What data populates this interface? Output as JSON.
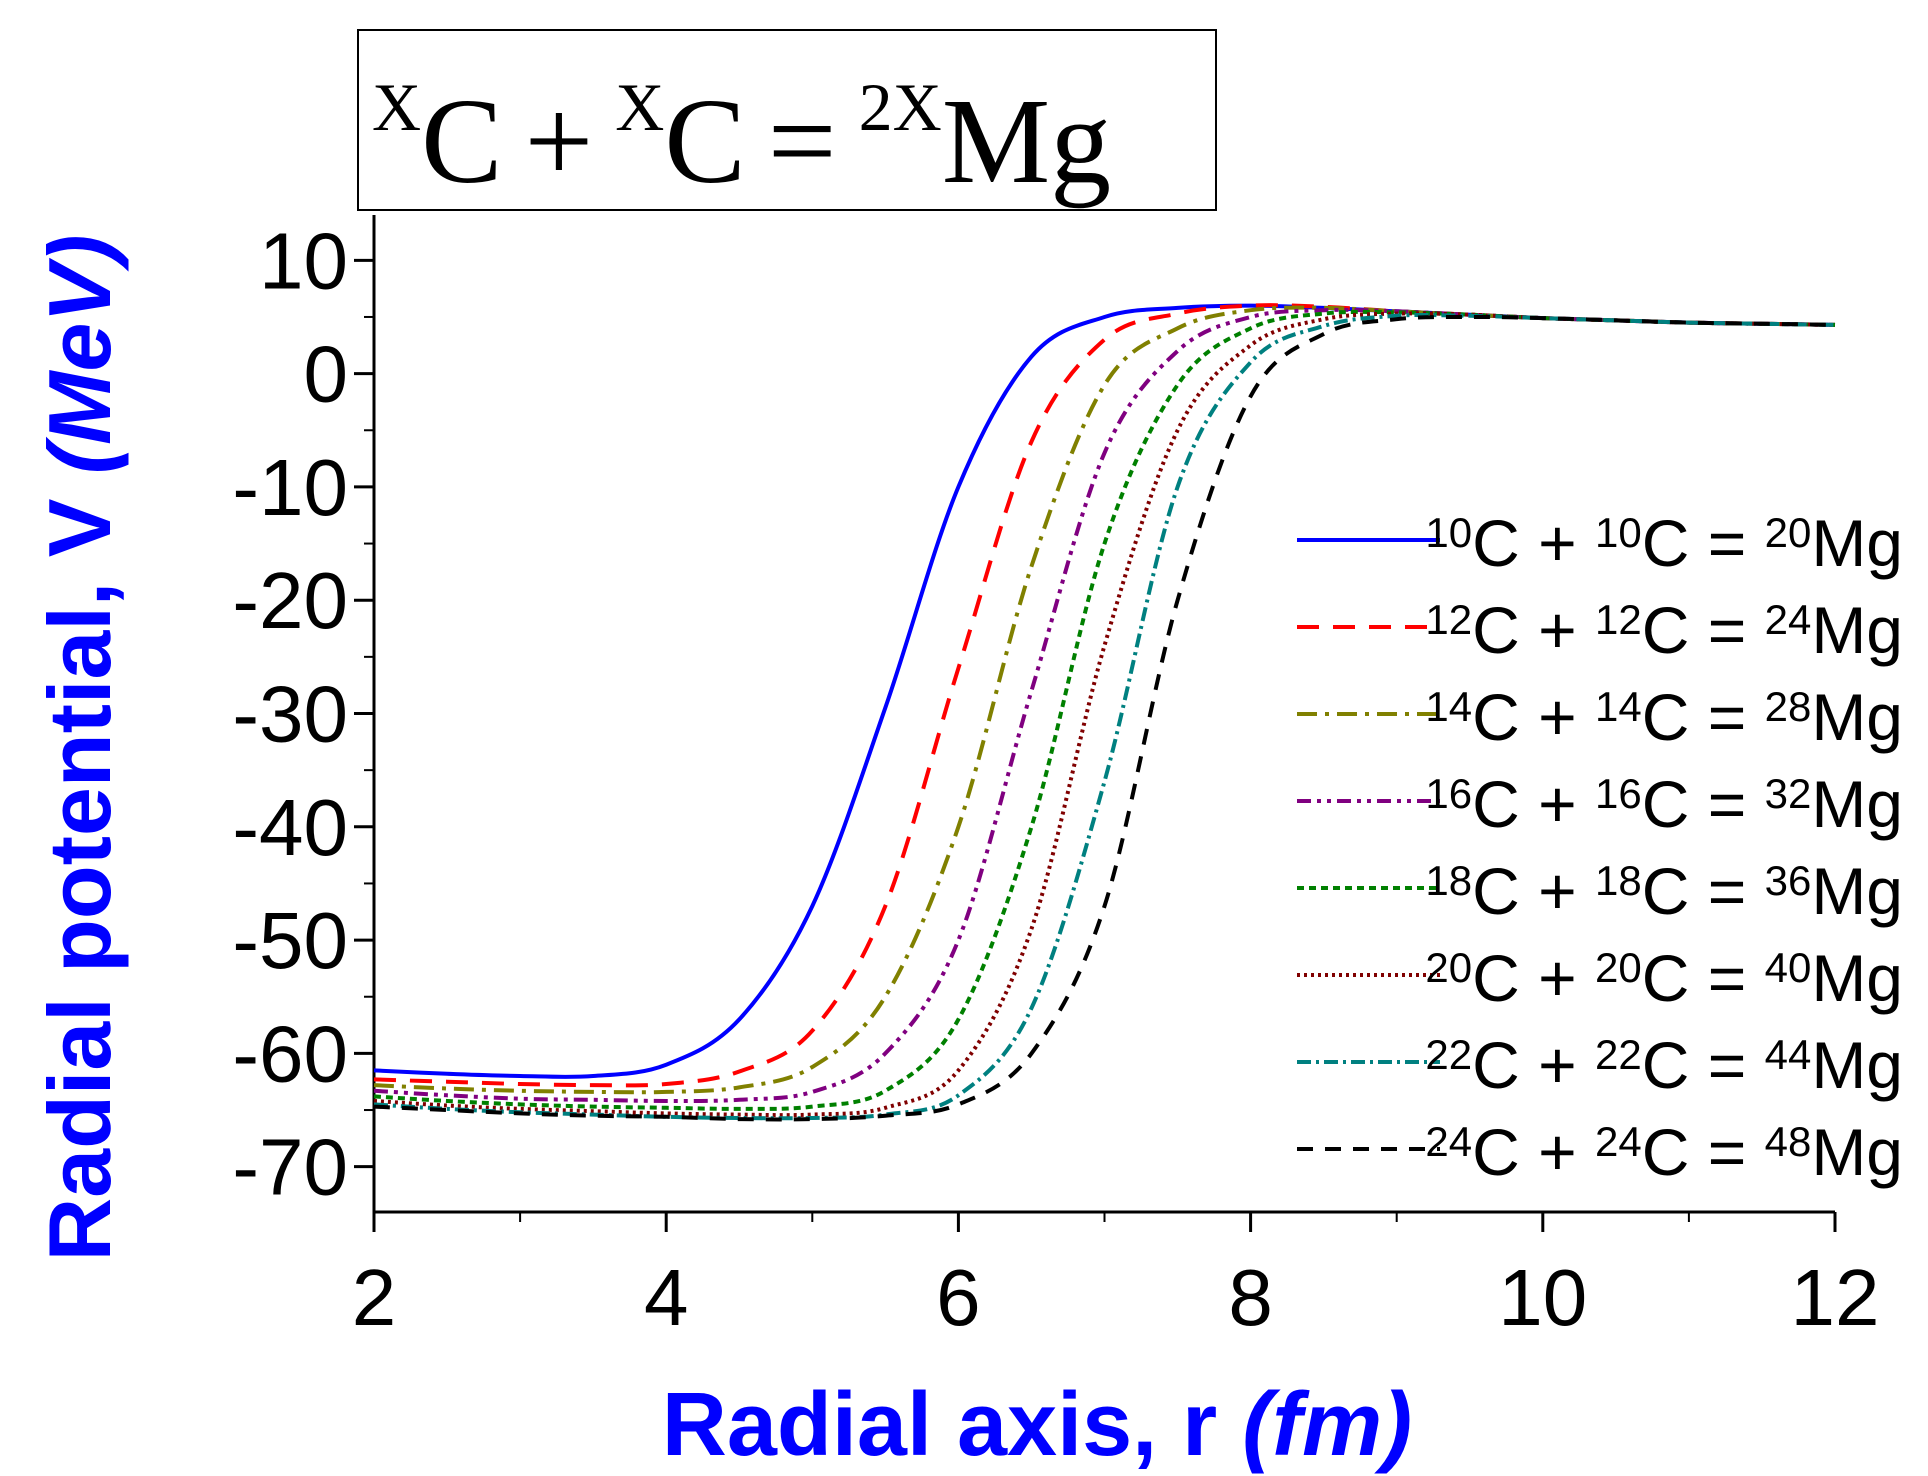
{
  "chart_data": {
    "type": "line",
    "title_box": {
      "sup_left": "X",
      "base_left": "C",
      "plus": "+",
      "sup_mid": "X",
      "base_mid": "C",
      "equals": "=",
      "sup_right": "2X",
      "base_right": "Mg"
    },
    "xlabel_main": "Radial axis, r ",
    "xlabel_unit": "(fm)",
    "ylabel_main": "Radial potential, V ",
    "ylabel_unit": "(MeV)",
    "xlim": [
      2,
      12
    ],
    "ylim": [
      -74,
      14
    ],
    "xticks": [
      2,
      4,
      6,
      8,
      10,
      12
    ],
    "xtick_labels": [
      "2",
      "4",
      "6",
      "8",
      "10",
      "12"
    ],
    "yticks": [
      10,
      0,
      -10,
      -20,
      -30,
      -40,
      -50,
      -60,
      -70
    ],
    "ytick_labels": [
      "10",
      "0",
      "-10",
      "-20",
      "-30",
      "-40",
      "-50",
      "-60",
      "-70"
    ],
    "legend_position": "right",
    "series": [
      {
        "name": "10C + 10C = 20Mg",
        "a": "10",
        "b": "10",
        "c": "20",
        "color": "#0000ff",
        "dash": "",
        "x": [
          2,
          2.5,
          3,
          3.5,
          4,
          4.5,
          5,
          5.5,
          6,
          6.5,
          7,
          7.5,
          8,
          8.5,
          9,
          9.5,
          10,
          10.5,
          11,
          11.5,
          12
        ],
        "y": [
          -61.5,
          -61.8,
          -62.0,
          -62.0,
          -61.0,
          -57.0,
          -47.0,
          -29.5,
          -10.0,
          1.5,
          5.0,
          5.8,
          6.0,
          5.8,
          5.5,
          5.2,
          4.9,
          4.7,
          4.5,
          4.4,
          4.3
        ]
      },
      {
        "name": "12C + 12C = 24Mg",
        "a": "12",
        "b": "12",
        "c": "24",
        "color": "#ff0000",
        "dash": "22,14",
        "x": [
          2,
          2.5,
          3,
          3.5,
          4,
          4.5,
          5,
          5.5,
          6,
          6.5,
          7,
          7.5,
          8,
          8.5,
          9,
          9.5,
          10,
          10.5,
          11,
          11.5,
          12
        ],
        "y": [
          -62.3,
          -62.5,
          -62.7,
          -62.8,
          -62.7,
          -61.6,
          -58.0,
          -47.0,
          -26.0,
          -6.0,
          3.0,
          5.3,
          6.0,
          5.9,
          5.5,
          5.2,
          4.9,
          4.7,
          4.5,
          4.4,
          4.3
        ]
      },
      {
        "name": "14C + 14C = 28Mg",
        "a": "14",
        "b": "14",
        "c": "28",
        "color": "#808000",
        "dash": "20,8,4,8",
        "x": [
          2,
          2.5,
          3,
          3.5,
          4,
          4.5,
          5,
          5.5,
          6,
          6.5,
          7,
          7.5,
          8,
          8.5,
          9,
          9.5,
          10,
          10.5,
          11,
          11.5,
          12
        ],
        "y": [
          -62.8,
          -63.1,
          -63.3,
          -63.4,
          -63.4,
          -63.0,
          -61.2,
          -55.0,
          -40.0,
          -17.0,
          -1.0,
          4.0,
          5.6,
          5.8,
          5.5,
          5.2,
          4.9,
          4.7,
          4.5,
          4.4,
          4.3
        ]
      },
      {
        "name": "16C + 16C = 32Mg",
        "a": "16",
        "b": "16",
        "c": "32",
        "color": "#800080",
        "dash": "14,6,4,6,4,6",
        "x": [
          2,
          2.5,
          3,
          3.5,
          4,
          4.5,
          5,
          5.5,
          6,
          6.5,
          7,
          7.5,
          8,
          8.5,
          9,
          9.5,
          10,
          10.5,
          11,
          11.5,
          12
        ],
        "y": [
          -63.3,
          -63.7,
          -64.0,
          -64.1,
          -64.2,
          -64.1,
          -63.4,
          -60.0,
          -50.0,
          -28.0,
          -7.0,
          2.0,
          5.0,
          5.6,
          5.5,
          5.2,
          4.9,
          4.7,
          4.5,
          4.4,
          4.3
        ]
      },
      {
        "name": "18C + 18C = 36Mg",
        "a": "18",
        "b": "18",
        "c": "36",
        "color": "#008000",
        "dash": "7,5",
        "x": [
          2,
          2.5,
          3,
          3.5,
          4,
          4.5,
          5,
          5.5,
          6,
          6.5,
          7,
          7.5,
          8,
          8.5,
          9,
          9.5,
          10,
          10.5,
          11,
          11.5,
          12
        ],
        "y": [
          -63.8,
          -64.2,
          -64.5,
          -64.7,
          -64.8,
          -64.9,
          -64.7,
          -63.3,
          -57.0,
          -40.0,
          -15.0,
          -1.0,
          4.0,
          5.3,
          5.4,
          5.2,
          4.9,
          4.7,
          4.5,
          4.4,
          4.3
        ]
      },
      {
        "name": "20C + 20C = 40Mg",
        "a": "20",
        "b": "20",
        "c": "40",
        "color": "#800000",
        "dash": "3,4",
        "x": [
          2,
          2.5,
          3,
          3.5,
          4,
          4.5,
          5,
          5.5,
          6,
          6.5,
          7,
          7.5,
          8,
          8.5,
          9,
          9.5,
          10,
          10.5,
          11,
          11.5,
          12
        ],
        "y": [
          -64.2,
          -64.6,
          -64.9,
          -65.1,
          -65.3,
          -65.4,
          -65.4,
          -64.8,
          -61.5,
          -49.0,
          -24.0,
          -5.0,
          2.5,
          4.8,
          5.3,
          5.2,
          4.9,
          4.7,
          4.5,
          4.4,
          4.3
        ]
      },
      {
        "name": "22C + 22C = 44Mg",
        "a": "22",
        "b": "22",
        "c": "44",
        "color": "#008080",
        "dash": "14,5,3,5",
        "x": [
          2,
          2.5,
          3,
          3.5,
          4,
          4.5,
          5,
          5.5,
          6,
          6.5,
          7,
          7.5,
          8,
          8.5,
          9,
          9.5,
          10,
          10.5,
          11,
          11.5,
          12
        ],
        "y": [
          -64.5,
          -64.9,
          -65.2,
          -65.4,
          -65.6,
          -65.7,
          -65.7,
          -65.4,
          -63.7,
          -56.0,
          -36.0,
          -10.0,
          1.0,
          4.2,
          5.1,
          5.1,
          4.9,
          4.7,
          4.5,
          4.4,
          4.3
        ]
      },
      {
        "name": "24C + 24C = 48Mg",
        "a": "24",
        "b": "24",
        "c": "48",
        "color": "#000000",
        "dash": "16,12",
        "x": [
          2,
          2.5,
          3,
          3.5,
          4,
          4.5,
          5,
          5.5,
          6,
          6.5,
          7,
          7.5,
          8,
          8.5,
          9,
          9.5,
          10,
          10.5,
          11,
          11.5,
          12
        ],
        "y": [
          -64.7,
          -65.0,
          -65.3,
          -65.5,
          -65.6,
          -65.8,
          -65.8,
          -65.5,
          -64.5,
          -60.0,
          -47.0,
          -20.0,
          -2.0,
          3.5,
          4.8,
          5.0,
          4.9,
          4.7,
          4.5,
          4.4,
          4.3
        ]
      }
    ]
  }
}
